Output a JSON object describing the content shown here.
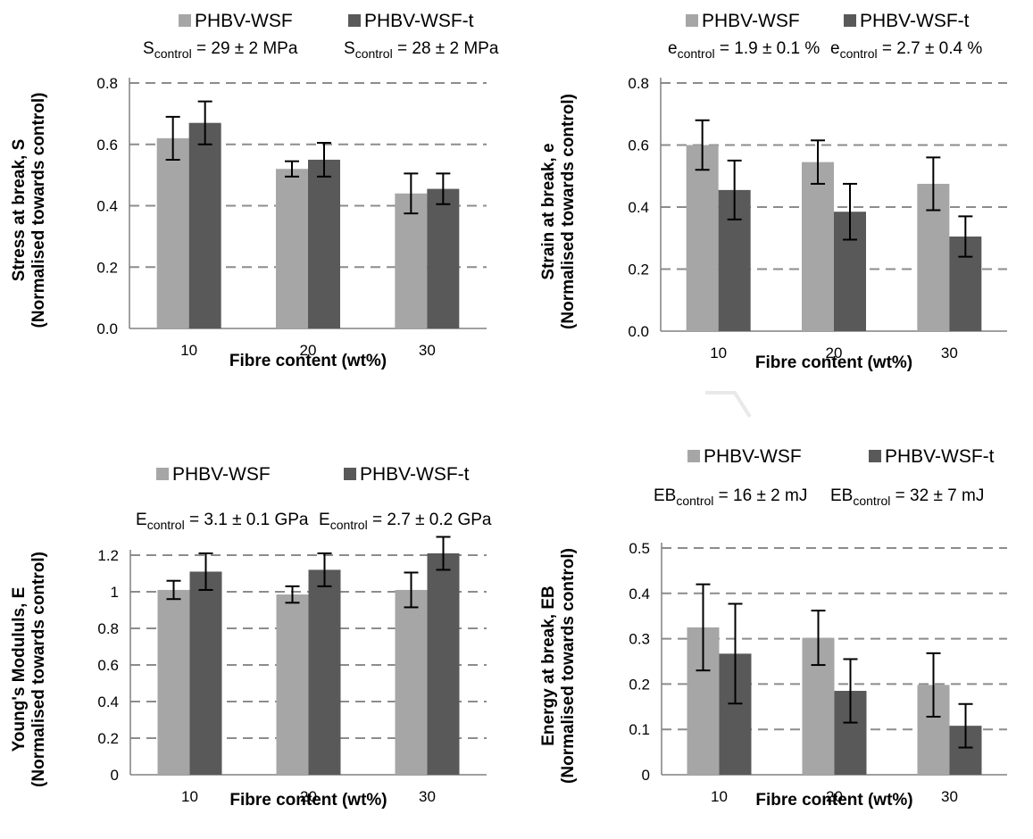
{
  "colors": {
    "series1": "#a6a6a6",
    "series2": "#595959",
    "grid": "#8c8c8c",
    "axis": "#808080",
    "errorbar": "#000000"
  },
  "chart_data": [
    {
      "type": "bar",
      "categories": [
        "10",
        "20",
        "30"
      ],
      "series": [
        {
          "name": "PHBV-WSF",
          "values": [
            0.62,
            0.52,
            0.44
          ],
          "errors": [
            0.07,
            0.025,
            0.065
          ]
        },
        {
          "name": "PHBV-WSF-t",
          "values": [
            0.67,
            0.55,
            0.455
          ],
          "errors": [
            0.07,
            0.055,
            0.05
          ]
        }
      ],
      "ylim": [
        0,
        0.8
      ],
      "yticks": [
        "0.0",
        "0.2",
        "0.4",
        "0.6",
        "0.8"
      ],
      "ylabel_line1": "Stress at break, S",
      "ylabel_line2": "(Normalised towards control)",
      "xlabel": "Fibre content (wt%)",
      "control_labels": [
        {
          "base": "S",
          "sub": "control",
          "value": "29",
          "pm": "2",
          "unit": "MPa"
        },
        {
          "base": "S",
          "sub": "control",
          "value": "28",
          "pm": "2",
          "unit": "MPa"
        }
      ],
      "grid": true
    },
    {
      "type": "bar",
      "categories": [
        "10",
        "20",
        "30"
      ],
      "series": [
        {
          "name": "PHBV-WSF",
          "values": [
            0.6,
            0.545,
            0.475
          ],
          "errors": [
            0.08,
            0.07,
            0.085
          ]
        },
        {
          "name": "PHBV-WSF-t",
          "values": [
            0.455,
            0.385,
            0.305
          ],
          "errors": [
            0.095,
            0.09,
            0.065
          ]
        }
      ],
      "ylim": [
        0,
        0.8
      ],
      "yticks": [
        "0.0",
        "0.2",
        "0.4",
        "0.6",
        "0.8"
      ],
      "ylabel_line1": "Strain at break, e",
      "ylabel_line2": "(Normalised towards control)",
      "xlabel": "Fibre content (wt%)",
      "control_labels": [
        {
          "base": "e",
          "sub": "control",
          "value": "1.9",
          "pm": "0.1",
          "unit": "%"
        },
        {
          "base": "e",
          "sub": "control",
          "value": "2.7",
          "pm": "0.4",
          "unit": "%"
        }
      ],
      "grid": true
    },
    {
      "type": "bar",
      "categories": [
        "10",
        "20",
        "30"
      ],
      "series": [
        {
          "name": "PHBV-WSF",
          "values": [
            1.01,
            0.985,
            1.01
          ],
          "errors": [
            0.05,
            0.045,
            0.095
          ]
        },
        {
          "name": "PHBV-WSF-t",
          "values": [
            1.11,
            1.12,
            1.21
          ],
          "errors": [
            0.1,
            0.09,
            0.09
          ]
        }
      ],
      "ylim": [
        0,
        1.2
      ],
      "yticks": [
        "0",
        "0.2",
        "0.4",
        "0.6",
        "0.8",
        "1",
        "1.2"
      ],
      "ylabel_line1": "Young's Modululs, E",
      "ylabel_line2": "(Normalised towards control)",
      "xlabel": "Fibre content (wt%)",
      "control_labels": [
        {
          "base": "E",
          "sub": "control",
          "value": "3.1",
          "pm": "0.1",
          "unit": "GPa"
        },
        {
          "base": "E",
          "sub": "control",
          "value": "2.7",
          "pm": "0.2",
          "unit": "GPa"
        }
      ],
      "grid": true
    },
    {
      "type": "bar",
      "categories": [
        "10",
        "20",
        "30"
      ],
      "series": [
        {
          "name": "PHBV-WSF",
          "values": [
            0.325,
            0.302,
            0.198
          ],
          "errors": [
            0.095,
            0.06,
            0.07
          ]
        },
        {
          "name": "PHBV-WSF-t",
          "values": [
            0.267,
            0.185,
            0.108
          ],
          "errors": [
            0.11,
            0.07,
            0.048
          ]
        }
      ],
      "ylim": [
        0,
        0.5
      ],
      "yticks": [
        "0",
        "0.1",
        "0.2",
        "0.3",
        "0.4",
        "0.5"
      ],
      "ylabel_line1": "Energy at break, EB",
      "ylabel_line2": "(Normalised towards control)",
      "xlabel": "Fibre content (wt%)",
      "control_labels": [
        {
          "base": "EB",
          "sub": "control",
          "value": "16",
          "pm": "2",
          "unit": "mJ"
        },
        {
          "base": "EB",
          "sub": "control",
          "value": "32",
          "pm": "7",
          "unit": "mJ"
        }
      ],
      "grid": true
    }
  ]
}
